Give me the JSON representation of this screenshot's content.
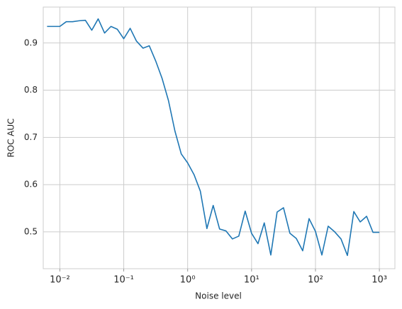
{
  "chart_data": {
    "type": "line",
    "xlabel": "Noise level",
    "ylabel": "ROC AUC",
    "x": [
      0.00631,
      0.00794,
      0.01,
      0.0126,
      0.0158,
      0.02,
      0.0251,
      0.0316,
      0.0398,
      0.0501,
      0.0631,
      0.0794,
      0.1,
      0.126,
      0.158,
      0.2,
      0.251,
      0.316,
      0.398,
      0.501,
      0.631,
      0.794,
      1,
      1.26,
      1.58,
      2,
      2.51,
      3.16,
      3.98,
      5.01,
      6.31,
      7.94,
      10,
      12.6,
      15.8,
      20,
      25.1,
      31.6,
      39.8,
      50.1,
      63.1,
      79.4,
      100,
      126,
      158,
      200,
      251,
      316,
      398,
      501,
      631,
      794,
      1000
    ],
    "series": [
      {
        "color": "#1f77b4",
        "values": [
          0.935,
          0.935,
          0.935,
          0.945,
          0.945,
          0.947,
          0.948,
          0.927,
          0.951,
          0.921,
          0.935,
          0.929,
          0.909,
          0.931,
          0.904,
          0.889,
          0.894,
          0.862,
          0.825,
          0.778,
          0.714,
          0.665,
          0.646,
          0.621,
          0.586,
          0.507,
          0.556,
          0.506,
          0.502,
          0.485,
          0.491,
          0.544,
          0.497,
          0.475,
          0.519,
          0.451,
          0.542,
          0.551,
          0.497,
          0.486,
          0.46,
          0.528,
          0.501,
          0.451,
          0.512,
          0.5,
          0.485,
          0.45,
          0.543,
          0.521,
          0.533,
          0.499,
          0.499
        ]
      }
    ],
    "xscale": "log",
    "xlim": [
      0.0055,
      1750
    ],
    "xticks": [
      {
        "value": 0.01,
        "label": "10⁻²"
      },
      {
        "value": 0.1,
        "label": "10⁻¹"
      },
      {
        "value": 1,
        "label": "10⁰"
      },
      {
        "value": 10,
        "label": "10¹"
      },
      {
        "value": 100,
        "label": "10²"
      },
      {
        "value": 1000,
        "label": "10³"
      }
    ],
    "ylim": [
      0.422,
      0.976
    ],
    "yticks": [
      0.5,
      0.6,
      0.7,
      0.8,
      0.9
    ],
    "grid": true
  }
}
